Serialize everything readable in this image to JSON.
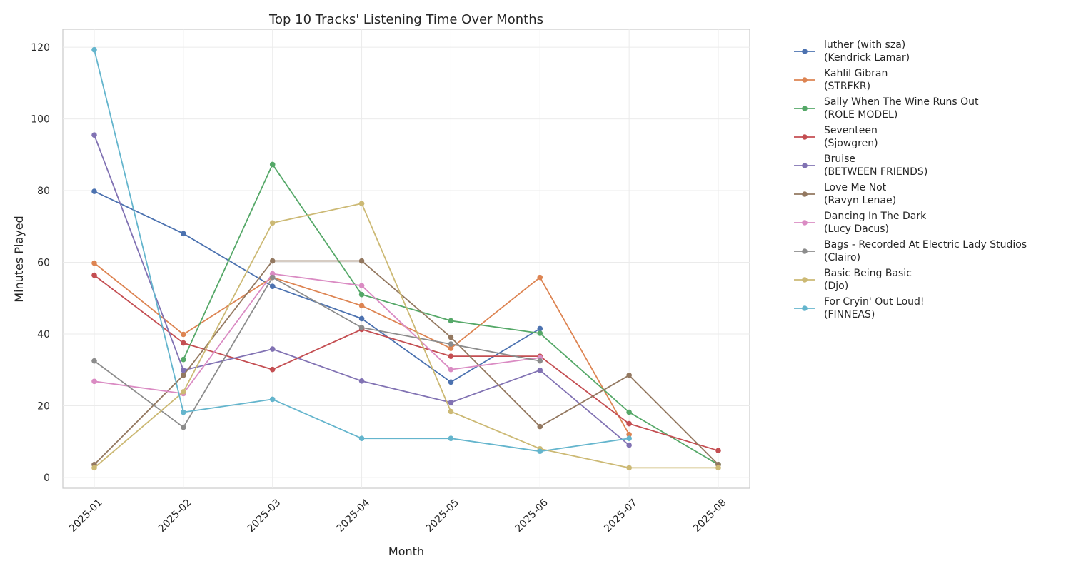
{
  "chart_data": {
    "type": "line",
    "title": "Top 10 Tracks' Listening Time Over Months",
    "xlabel": "Month",
    "ylabel": "Minutes Played",
    "categories": [
      "2025-01",
      "2025-02",
      "2025-03",
      "2025-04",
      "2025-05",
      "2025-06",
      "2025-07",
      "2025-08"
    ],
    "ylim": [
      -3,
      125
    ],
    "yticks": [
      0,
      20,
      40,
      60,
      80,
      100,
      120
    ],
    "grid": true,
    "legend_position": "outside-right",
    "series": [
      {
        "name": "luther (with sza)",
        "artist": "(Kendrick Lamar)",
        "color": "#4c72b0",
        "values": [
          79.8,
          68.0,
          53.3,
          44.3,
          26.6,
          41.5,
          null,
          null
        ]
      },
      {
        "name": "Kahlil Gibran",
        "artist": "(STRFKR)",
        "color": "#dd8452",
        "values": [
          59.8,
          39.9,
          55.8,
          47.9,
          36.0,
          55.8,
          12.0,
          null
        ]
      },
      {
        "name": "Sally  When The Wine Runs Out",
        "artist": "(ROLE MODEL)",
        "color": "#55a868",
        "values": [
          null,
          32.9,
          87.3,
          51.0,
          43.7,
          40.2,
          18.2,
          3.6
        ]
      },
      {
        "name": "Seventeen",
        "artist": "(Sjowgren)",
        "color": "#c44e52",
        "values": [
          56.4,
          37.5,
          30.1,
          41.3,
          33.8,
          33.8,
          15.0,
          7.5
        ]
      },
      {
        "name": "Bruise",
        "artist": "(BETWEEN FRIENDS)",
        "color": "#8172b3",
        "values": [
          95.5,
          29.9,
          35.8,
          26.9,
          20.9,
          29.9,
          9.0,
          null
        ]
      },
      {
        "name": "Love Me Not",
        "artist": "(Ravyn Lenae)",
        "color": "#937860",
        "values": [
          3.6,
          28.5,
          60.4,
          60.4,
          39.1,
          14.2,
          28.5,
          3.6
        ]
      },
      {
        "name": "Dancing In The Dark",
        "artist": "(Lucy Dacus)",
        "color": "#da8bc3",
        "values": [
          26.8,
          23.4,
          56.8,
          53.5,
          30.1,
          33.4,
          null,
          null
        ]
      },
      {
        "name": "Bags - Recorded At Electric Lady Studios",
        "artist": "(Clairo)",
        "color": "#8c8c8c",
        "values": [
          32.5,
          14.0,
          55.8,
          41.8,
          37.2,
          32.5,
          null,
          null
        ]
      },
      {
        "name": "Basic Being Basic",
        "artist": "(Djo)",
        "color": "#ccb974",
        "values": [
          2.7,
          23.9,
          71.0,
          76.4,
          18.4,
          8.0,
          2.7,
          2.7
        ]
      },
      {
        "name": "For Cryin' Out Loud!",
        "artist": "(FINNEAS)",
        "color": "#64b5cd",
        "values": [
          119.3,
          18.2,
          21.8,
          10.9,
          10.9,
          7.3,
          10.9,
          null
        ]
      }
    ]
  }
}
